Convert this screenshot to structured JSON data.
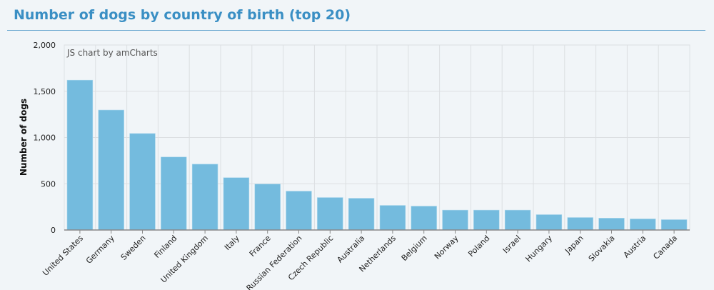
{
  "header": {
    "title": "Number of dogs by country of birth (top 20)"
  },
  "credit": "JS chart by amCharts",
  "chart_data": {
    "type": "bar",
    "title": "Number of dogs by country of birth (top 20)",
    "xlabel": "",
    "ylabel": "Number of dogs",
    "ylim": [
      0,
      2000
    ],
    "yticks": [
      0,
      500,
      1000,
      1500,
      2000
    ],
    "ytick_labels": [
      "0",
      "500",
      "1,000",
      "1,500",
      "2,000"
    ],
    "grid": true,
    "bar_color": "#74bbde",
    "categories": [
      "United States",
      "Germany",
      "Sweden",
      "Finland",
      "United Kingdom",
      "Italy",
      "France",
      "Russian Federation",
      "Czech Republic",
      "Australia",
      "Netherlands",
      "Belgium",
      "Norway",
      "Poland",
      "Israel",
      "Hungary",
      "Japan",
      "Slovakia",
      "Austria",
      "Canada"
    ],
    "values": [
      1620,
      1297,
      1043,
      789,
      712,
      566,
      497,
      420,
      351,
      343,
      266,
      258,
      215,
      215,
      215,
      166,
      135,
      128,
      120,
      112
    ]
  }
}
